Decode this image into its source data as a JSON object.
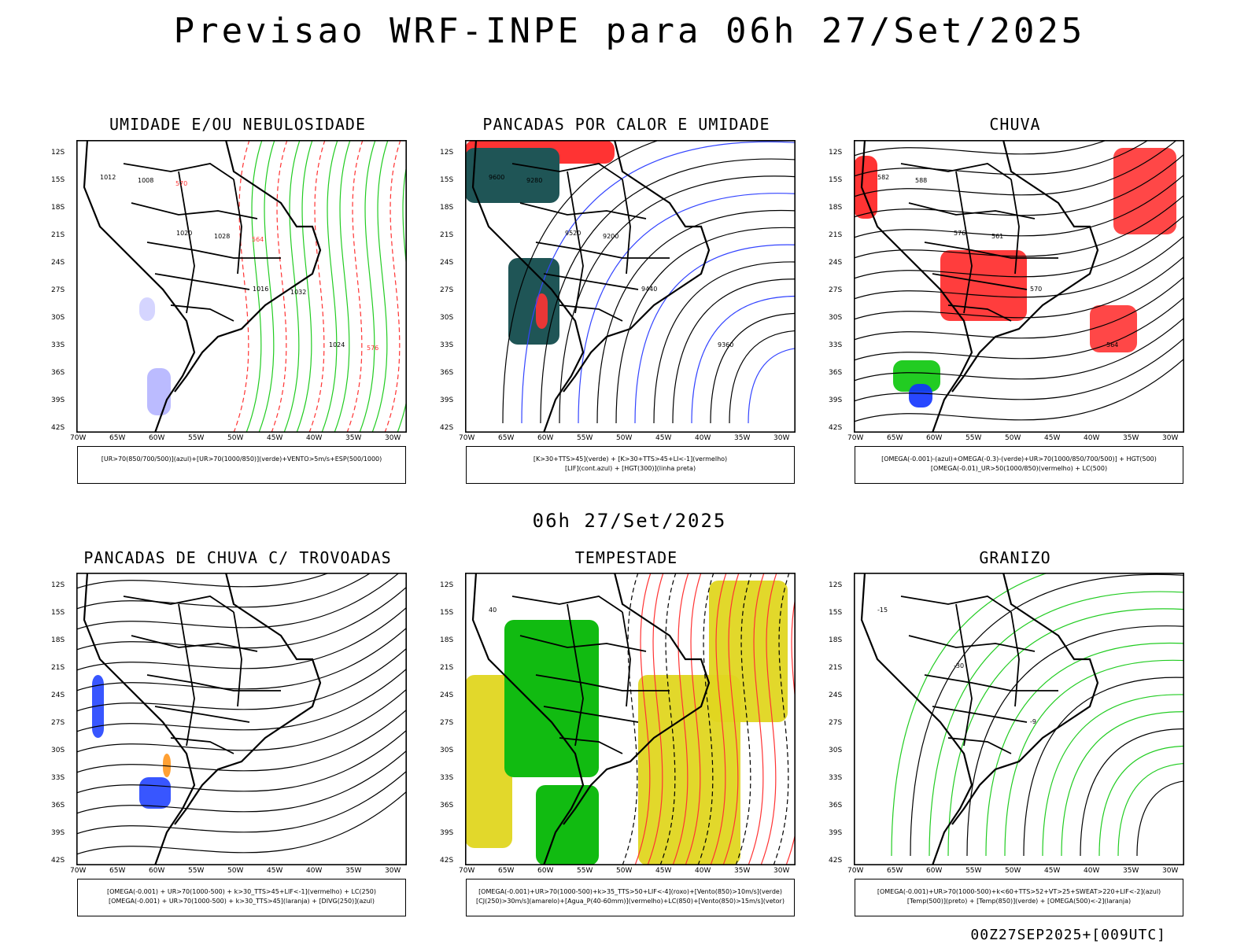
{
  "main_title": "Previsao WRF-INPE  para 06h 27/Set/2025",
  "mid_title": "06h 27/Set/2025",
  "footer": "00Z27SEP2025+[009UTC]",
  "lat_ticks": [
    "12S",
    "15S",
    "18S",
    "21S",
    "24S",
    "27S",
    "30S",
    "33S",
    "36S",
    "39S",
    "42S"
  ],
  "lon_ticks": [
    "70W",
    "65W",
    "60W",
    "55W",
    "50W",
    "45W",
    "40W",
    "35W",
    "30W"
  ],
  "panels": [
    {
      "title": "UMIDADE E/OU NEBULOSIDADE",
      "legend": [
        "[UR>70(850/700/500)](azul)+[UR>70(1000/850)](verde)+VENTO>5m/s+ESP(500/1000)"
      ],
      "labels": [
        "1012",
        "1020",
        "1016",
        "1024",
        "1008",
        "1028",
        "1032",
        "576",
        "570",
        "564"
      ]
    },
    {
      "title": "PANCADAS POR CALOR E UMIDADE",
      "legend": [
        "[K>30+TTS>45](verde) + [K>30+TTS>45+LI<-1](vermelho)",
        "[LIF](cont.azul) + [HGT(300)](linha preta)"
      ],
      "labels": [
        "9600",
        "9520",
        "9440",
        "9360",
        "9280",
        "9200"
      ]
    },
    {
      "title": "CHUVA",
      "legend": [
        "[OMEGA(-0.001)-(azul)+OMEGA(-0.3)-(verde)+UR>70(1000/850/700/500)] + HGT(500)",
        "[OMEGA(-0.01)_UR>50(1000/850)(vermelho) + LC(500)"
      ],
      "labels": [
        "582",
        "576",
        "570",
        "564",
        "588",
        "561"
      ]
    },
    {
      "title": "PANCADAS DE CHUVA C/ TROVOADAS",
      "legend": [
        "[OMEGA(-0.001) + UR>70(1000-500) + k>30_TTS>45+LIF<-1](vermelho) + LC(250)",
        "[OMEGA(-0.001) + UR>70(1000-500) + k>30_TTS>45](laranja) + [DIVG(250)](azul)"
      ],
      "labels": []
    },
    {
      "title": "TEMPESTADE",
      "legend": [
        "[OMEGA(-0.001)+UR>70(1000-500)+k>35_TTS>50+LIF<-4](roxo)+[Vento(850)>10m/s](verde)",
        "[CJ(250)>30m/s](amarelo)+[Agua_P(40-60mm)](vermelho)+LC(850)+[Vento(850)>15m/s](vetor)"
      ],
      "labels": [
        "40"
      ]
    },
    {
      "title": "GRANIZO",
      "legend": [
        "[OMEGA(-0.001)+UR>70(1000-500)+k<60+TTS>52+VT>25+SWEAT>220+LIF<-2](azul)",
        "[Temp(500)](preto) + [Temp(850)](verde) + [OMEGA(500)<-2](laranja)"
      ],
      "labels": [
        "-15",
        "-30",
        "-9"
      ]
    }
  ]
}
